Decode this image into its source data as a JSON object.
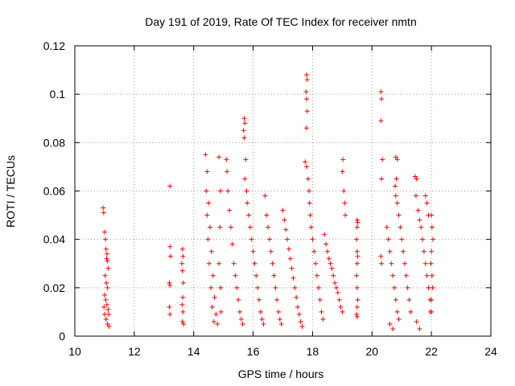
{
  "chart_data": {
    "type": "scatter",
    "title": "Day 191 of 2019, Rate Of TEC Index for receiver nmtn",
    "xlabel": "GPS time / hours",
    "ylabel": "ROTI / TECUs",
    "xlim": [
      10,
      24
    ],
    "ylim": [
      0,
      0.12
    ],
    "x_ticks": [
      "10",
      "12",
      "14",
      "16",
      "18",
      "20",
      "22",
      "24"
    ],
    "y_ticks": [
      "0",
      "0.02",
      "0.04",
      "0.06",
      "0.08",
      "0.1",
      "0.12"
    ],
    "grid": true,
    "marker": "+",
    "color": "#ff0000",
    "series": [
      {
        "points": [
          [
            10.95,
            0.053
          ],
          [
            10.97,
            0.051
          ],
          [
            11.0,
            0.043
          ],
          [
            11.03,
            0.04
          ],
          [
            11.05,
            0.036
          ],
          [
            11.08,
            0.034
          ],
          [
            11.1,
            0.031
          ],
          [
            11.12,
            0.028
          ],
          [
            11.02,
            0.025
          ],
          [
            11.06,
            0.022
          ],
          [
            11.1,
            0.02
          ],
          [
            11.0,
            0.017
          ],
          [
            11.04,
            0.015
          ],
          [
            11.08,
            0.013
          ],
          [
            11.12,
            0.011
          ],
          [
            11.0,
            0.009
          ],
          [
            11.05,
            0.007
          ],
          [
            11.1,
            0.005
          ],
          [
            11.15,
            0.004
          ],
          [
            11.07,
            0.032
          ],
          [
            10.98,
            0.012
          ],
          [
            11.14,
            0.009
          ],
          [
            13.2,
            0.062
          ],
          [
            13.2,
            0.037
          ],
          [
            13.22,
            0.033
          ],
          [
            13.18,
            0.022
          ],
          [
            13.2,
            0.021
          ],
          [
            13.18,
            0.012
          ],
          [
            13.2,
            0.009
          ],
          [
            13.62,
            0.036
          ],
          [
            13.64,
            0.033
          ],
          [
            13.6,
            0.03
          ],
          [
            13.62,
            0.027
          ],
          [
            13.65,
            0.022
          ],
          [
            13.63,
            0.016
          ],
          [
            13.61,
            0.013
          ],
          [
            13.64,
            0.01
          ],
          [
            13.62,
            0.006
          ],
          [
            13.66,
            0.005
          ],
          [
            14.4,
            0.075
          ],
          [
            14.45,
            0.068
          ],
          [
            14.42,
            0.06
          ],
          [
            14.5,
            0.055
          ],
          [
            14.45,
            0.05
          ],
          [
            14.55,
            0.045
          ],
          [
            14.48,
            0.04
          ],
          [
            14.6,
            0.035
          ],
          [
            14.52,
            0.03
          ],
          [
            14.65,
            0.025
          ],
          [
            14.58,
            0.02
          ],
          [
            14.7,
            0.016
          ],
          [
            14.62,
            0.012
          ],
          [
            14.75,
            0.009
          ],
          [
            14.68,
            0.006
          ],
          [
            14.8,
            0.005
          ],
          [
            14.85,
            0.074
          ],
          [
            14.9,
            0.06
          ],
          [
            14.88,
            0.045
          ],
          [
            14.85,
            0.03
          ],
          [
            14.9,
            0.02
          ],
          [
            14.92,
            0.01
          ],
          [
            15.1,
            0.073
          ],
          [
            15.12,
            0.068
          ],
          [
            15.15,
            0.06
          ],
          [
            15.2,
            0.052
          ],
          [
            15.25,
            0.045
          ],
          [
            15.3,
            0.038
          ],
          [
            15.35,
            0.03
          ],
          [
            15.4,
            0.025
          ],
          [
            15.45,
            0.02
          ],
          [
            15.5,
            0.015
          ],
          [
            15.55,
            0.01
          ],
          [
            15.6,
            0.007
          ],
          [
            15.65,
            0.005
          ],
          [
            15.7,
            0.09
          ],
          [
            15.72,
            0.088
          ],
          [
            15.68,
            0.085
          ],
          [
            15.7,
            0.082
          ],
          [
            15.75,
            0.073
          ],
          [
            15.72,
            0.065
          ],
          [
            15.78,
            0.06
          ],
          [
            15.8,
            0.055
          ],
          [
            15.85,
            0.05
          ],
          [
            15.9,
            0.045
          ],
          [
            15.95,
            0.04
          ],
          [
            16.0,
            0.035
          ],
          [
            16.05,
            0.03
          ],
          [
            16.1,
            0.025
          ],
          [
            16.15,
            0.02
          ],
          [
            16.2,
            0.015
          ],
          [
            16.25,
            0.01
          ],
          [
            16.3,
            0.007
          ],
          [
            16.35,
            0.005
          ],
          [
            16.4,
            0.058
          ],
          [
            16.45,
            0.05
          ],
          [
            16.5,
            0.045
          ],
          [
            16.55,
            0.04
          ],
          [
            16.6,
            0.035
          ],
          [
            16.65,
            0.03
          ],
          [
            16.7,
            0.025
          ],
          [
            16.75,
            0.02
          ],
          [
            16.8,
            0.015
          ],
          [
            16.85,
            0.01
          ],
          [
            16.9,
            0.007
          ],
          [
            16.95,
            0.005
          ],
          [
            17.0,
            0.052
          ],
          [
            17.05,
            0.048
          ],
          [
            17.1,
            0.044
          ],
          [
            17.15,
            0.04
          ],
          [
            17.2,
            0.036
          ],
          [
            17.25,
            0.032
          ],
          [
            17.3,
            0.028
          ],
          [
            17.35,
            0.024
          ],
          [
            17.4,
            0.02
          ],
          [
            17.45,
            0.016
          ],
          [
            17.5,
            0.012
          ],
          [
            17.55,
            0.009
          ],
          [
            17.6,
            0.006
          ],
          [
            17.65,
            0.004
          ],
          [
            17.8,
            0.108
          ],
          [
            17.82,
            0.106
          ],
          [
            17.78,
            0.101
          ],
          [
            17.8,
            0.098
          ],
          [
            17.82,
            0.093
          ],
          [
            17.79,
            0.086
          ],
          [
            17.75,
            0.072
          ],
          [
            17.8,
            0.07
          ],
          [
            17.85,
            0.065
          ],
          [
            17.88,
            0.06
          ],
          [
            17.9,
            0.055
          ],
          [
            17.92,
            0.05
          ],
          [
            17.95,
            0.045
          ],
          [
            18.0,
            0.04
          ],
          [
            18.05,
            0.035
          ],
          [
            18.1,
            0.03
          ],
          [
            18.15,
            0.025
          ],
          [
            18.2,
            0.02
          ],
          [
            18.25,
            0.015
          ],
          [
            18.3,
            0.01
          ],
          [
            18.35,
            0.007
          ],
          [
            18.4,
            0.042
          ],
          [
            18.45,
            0.038
          ],
          [
            18.5,
            0.035
          ],
          [
            18.55,
            0.032
          ],
          [
            18.6,
            0.03
          ],
          [
            18.65,
            0.028
          ],
          [
            18.7,
            0.025
          ],
          [
            18.75,
            0.022
          ],
          [
            18.8,
            0.02
          ],
          [
            18.85,
            0.018
          ],
          [
            18.9,
            0.015
          ],
          [
            18.95,
            0.012
          ],
          [
            19.0,
            0.01
          ],
          [
            19.02,
            0.073
          ],
          [
            19.0,
            0.068
          ],
          [
            19.05,
            0.06
          ],
          [
            19.08,
            0.055
          ],
          [
            19.1,
            0.05
          ],
          [
            19.5,
            0.048
          ],
          [
            19.52,
            0.047
          ],
          [
            19.5,
            0.045
          ],
          [
            19.48,
            0.04
          ],
          [
            19.5,
            0.035
          ],
          [
            19.52,
            0.033
          ],
          [
            19.5,
            0.03
          ],
          [
            19.48,
            0.025
          ],
          [
            19.5,
            0.02
          ],
          [
            19.52,
            0.015
          ],
          [
            19.5,
            0.012
          ],
          [
            19.48,
            0.009
          ],
          [
            19.5,
            0.008
          ],
          [
            20.3,
            0.101
          ],
          [
            20.32,
            0.098
          ],
          [
            20.3,
            0.089
          ],
          [
            20.35,
            0.073
          ],
          [
            20.32,
            0.065
          ],
          [
            20.3,
            0.033
          ],
          [
            20.32,
            0.03
          ],
          [
            20.5,
            0.045
          ],
          [
            20.55,
            0.04
          ],
          [
            20.6,
            0.035
          ],
          [
            20.65,
            0.03
          ],
          [
            20.7,
            0.025
          ],
          [
            20.75,
            0.02
          ],
          [
            20.8,
            0.015
          ],
          [
            20.85,
            0.01
          ],
          [
            20.9,
            0.007
          ],
          [
            20.6,
            0.005
          ],
          [
            20.7,
            0.003
          ],
          [
            20.8,
            0.074
          ],
          [
            20.85,
            0.073
          ],
          [
            20.82,
            0.065
          ],
          [
            20.78,
            0.062
          ],
          [
            20.8,
            0.058
          ],
          [
            20.85,
            0.055
          ],
          [
            20.9,
            0.05
          ],
          [
            20.95,
            0.045
          ],
          [
            21.0,
            0.04
          ],
          [
            21.05,
            0.035
          ],
          [
            21.1,
            0.03
          ],
          [
            21.15,
            0.025
          ],
          [
            21.2,
            0.02
          ],
          [
            21.25,
            0.015
          ],
          [
            21.3,
            0.01
          ],
          [
            21.45,
            0.066
          ],
          [
            21.5,
            0.065
          ],
          [
            21.48,
            0.058
          ],
          [
            21.55,
            0.052
          ],
          [
            21.6,
            0.048
          ],
          [
            21.65,
            0.045
          ],
          [
            21.7,
            0.04
          ],
          [
            21.75,
            0.035
          ],
          [
            21.8,
            0.03
          ],
          [
            21.85,
            0.025
          ],
          [
            21.9,
            0.02
          ],
          [
            21.95,
            0.015
          ],
          [
            22.0,
            0.01
          ],
          [
            21.5,
            0.006
          ],
          [
            21.6,
            0.003
          ],
          [
            21.8,
            0.058
          ],
          [
            21.85,
            0.055
          ],
          [
            21.9,
            0.05
          ],
          [
            22.0,
            0.05
          ],
          [
            22.02,
            0.045
          ],
          [
            22.05,
            0.04
          ],
          [
            22.0,
            0.035
          ],
          [
            21.98,
            0.03
          ],
          [
            22.02,
            0.025
          ],
          [
            22.04,
            0.02
          ],
          [
            22.0,
            0.015
          ],
          [
            21.96,
            0.01
          ]
        ]
      }
    ]
  }
}
